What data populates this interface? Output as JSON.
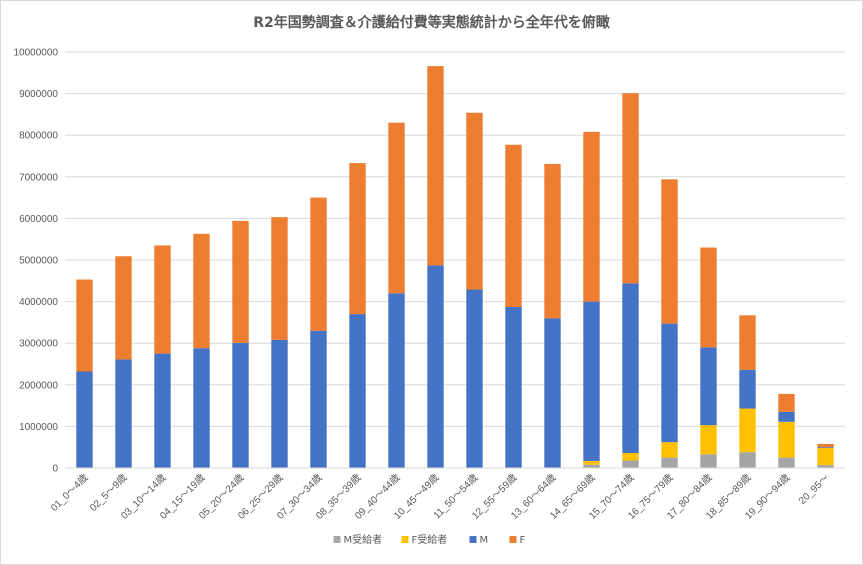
{
  "chart_data": {
    "type": "bar",
    "stacked": true,
    "title": "R2年国勢調査＆介護給付費等実態統計から全年代を俯瞰",
    "xlabel": "",
    "ylabel": "",
    "ylim": [
      0,
      10000000
    ],
    "yticks": [
      0,
      1000000,
      2000000,
      3000000,
      4000000,
      5000000,
      6000000,
      7000000,
      8000000,
      9000000,
      10000000
    ],
    "yticklabels": [
      "0",
      "1000000",
      "2000000",
      "3000000",
      "4000000",
      "5000000",
      "6000000",
      "7000000",
      "8000000",
      "9000000",
      "10000000"
    ],
    "grid": true,
    "legend": "bottom",
    "categories": [
      "01_0～4歳",
      "02_5～9歳",
      "03_10～14歳",
      "04_15～19歳",
      "05_20～24歳",
      "06_25～29歳",
      "07_30～34歳",
      "08_35～39歳",
      "09_40～44歳",
      "10_45～49歳",
      "11_50～54歳",
      "12_55～59歳",
      "13_60～64歳",
      "14_65～69歳",
      "15_70～74歳",
      "16_75～79歳",
      "17_80～84歳",
      "18_85～89歳",
      "19_90～94歳",
      "20_95～"
    ],
    "series": [
      {
        "name": "M受給者",
        "color": "#a5a5a5",
        "values": [
          0,
          0,
          0,
          0,
          0,
          0,
          0,
          0,
          0,
          0,
          0,
          0,
          0,
          80000,
          180000,
          250000,
          330000,
          380000,
          250000,
          70000
        ]
      },
      {
        "name": "F受給者",
        "color": "#ffc000",
        "values": [
          0,
          0,
          0,
          0,
          0,
          0,
          0,
          0,
          0,
          0,
          0,
          0,
          0,
          90000,
          180000,
          370000,
          700000,
          1050000,
          860000,
          410000
        ]
      },
      {
        "name": "M",
        "color": "#4472c4",
        "values": [
          2320000,
          2610000,
          2750000,
          2880000,
          3010000,
          3080000,
          3300000,
          3700000,
          4200000,
          4870000,
          4290000,
          3870000,
          3600000,
          3830000,
          4080000,
          2850000,
          1870000,
          930000,
          240000,
          20000
        ]
      },
      {
        "name": "F",
        "color": "#ed7d31",
        "values": [
          2210000,
          2480000,
          2600000,
          2750000,
          2930000,
          2950000,
          3200000,
          3630000,
          4100000,
          4790000,
          4250000,
          3900000,
          3710000,
          4080000,
          4570000,
          3470000,
          2400000,
          1310000,
          430000,
          80000
        ]
      }
    ]
  }
}
